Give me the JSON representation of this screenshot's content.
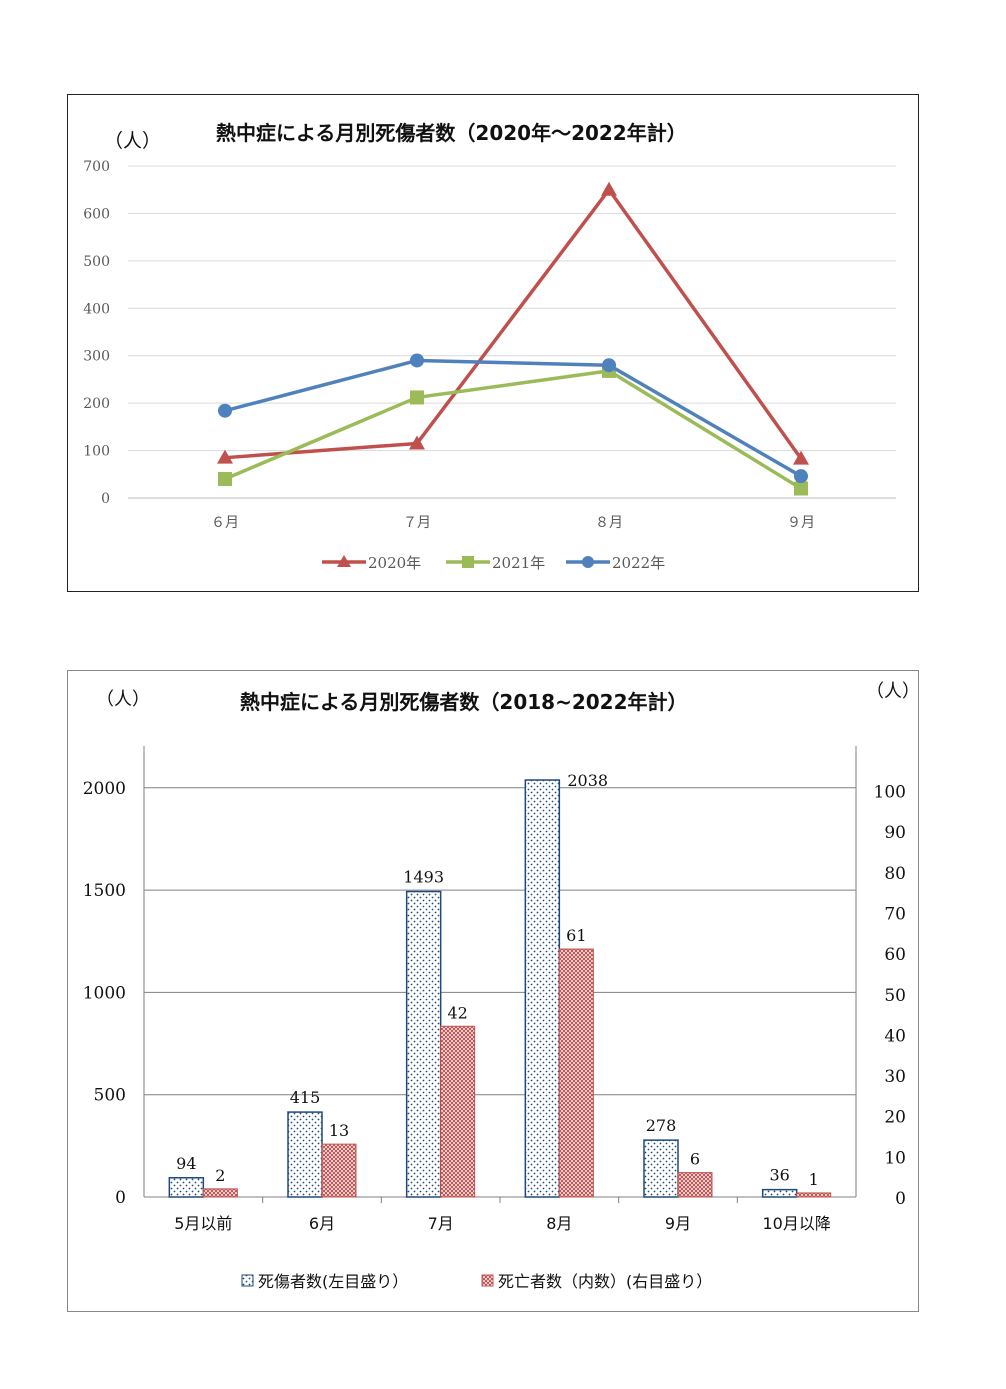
{
  "chart_data": [
    {
      "type": "line",
      "title": "熱中症による月別死傷者数（2020年～2022年計）",
      "y_unit": "（人）",
      "categories": [
        "６月",
        "７月",
        "８月",
        "９月"
      ],
      "ylim": [
        0,
        700
      ],
      "yticks": [
        "0",
        "100",
        "200",
        "300",
        "400",
        "500",
        "600",
        "700"
      ],
      "grid": true,
      "legend_position": "bottom",
      "series": [
        {
          "name": "2020年",
          "values": [
            85,
            115,
            650,
            83
          ],
          "color": "#c0504d",
          "marker": "triangle"
        },
        {
          "name": "2021年",
          "values": [
            40,
            212,
            268,
            20
          ],
          "color": "#9bbb59",
          "marker": "square"
        },
        {
          "name": "2022年",
          "values": [
            184,
            290,
            280,
            46
          ],
          "color": "#4f81bd",
          "marker": "circle"
        }
      ]
    },
    {
      "type": "bar",
      "title": "熱中症による月別死傷者数（2018~2022年計）",
      "y_unit_left": "（人）",
      "y_unit_right": "（人）",
      "categories": [
        "5月以前",
        "6月",
        "7月",
        "8月",
        "9月",
        "10月以降"
      ],
      "ylim_left": [
        0,
        2200
      ],
      "yticks_left": [
        "0",
        "500",
        "1000",
        "1500",
        "2000"
      ],
      "ylim_right": [
        0,
        110
      ],
      "yticks_right": [
        "0",
        "10",
        "20",
        "30",
        "40",
        "50",
        "60",
        "70",
        "80",
        "90",
        "100"
      ],
      "grid": true,
      "legend_position": "bottom",
      "series": [
        {
          "name": "死傷者数(左目盛り）",
          "axis": "left",
          "values": [
            94,
            415,
            1493,
            2038,
            278,
            36
          ],
          "labels": [
            "94",
            "415",
            "1493",
            "2038",
            "278",
            "36"
          ],
          "color": "#1f497d",
          "pattern": "dots"
        },
        {
          "name": "死亡者数（内数）(右目盛り）",
          "axis": "right",
          "values": [
            2,
            13,
            42,
            61,
            6,
            1
          ],
          "labels": [
            "2",
            "13",
            "42",
            "61",
            "6",
            "1"
          ],
          "color": "#c0504d",
          "pattern": "crosshatch"
        }
      ]
    }
  ]
}
